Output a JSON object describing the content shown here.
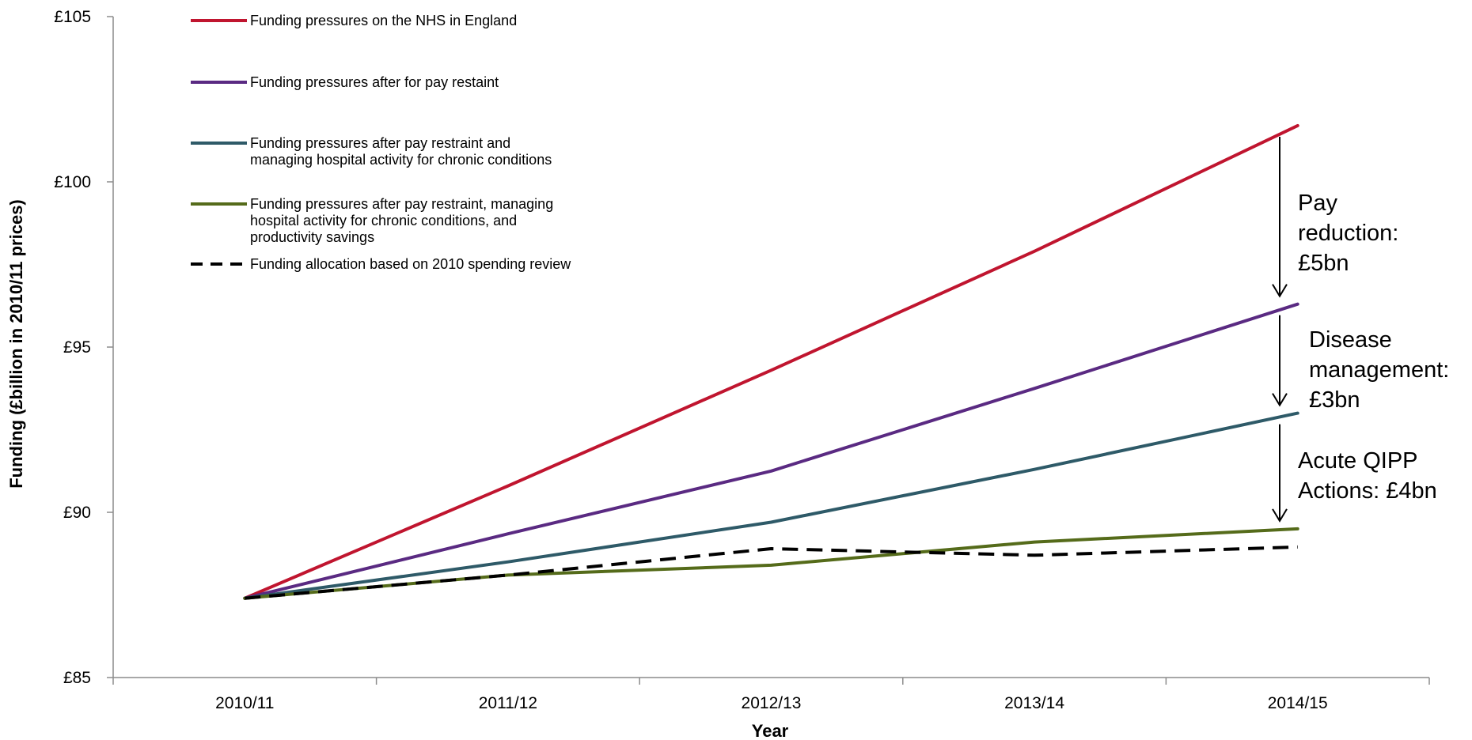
{
  "chart_data": {
    "type": "line",
    "title": "",
    "xlabel": "Year",
    "ylabel": "Funding (£billion in 2010/11 prices)",
    "categories": [
      "2010/11",
      "2011/12",
      "2012/13",
      "2013/14",
      "2014/15"
    ],
    "ylim": [
      85,
      105
    ],
    "yticks": [
      85,
      90,
      95,
      100,
      105
    ],
    "ytick_labels": [
      "£85",
      "£90",
      "£95",
      "£100",
      "£105"
    ],
    "grid": false,
    "legend_position": "top-left",
    "series": [
      {
        "name": "Funding pressures on the NHS in England",
        "color": "#c0152f",
        "dashed": false,
        "values": [
          87.4,
          90.8,
          94.3,
          97.9,
          101.7
        ]
      },
      {
        "name": "Funding pressures after for pay restaint",
        "color": "#5a2a82",
        "dashed": false,
        "values": [
          87.4,
          89.35,
          91.25,
          93.75,
          96.3
        ]
      },
      {
        "name": "Funding pressures after pay restraint and managing hospital activity for chronic conditions",
        "color": "#2e5a68",
        "dashed": false,
        "values": [
          87.4,
          88.5,
          89.7,
          91.3,
          93.0
        ]
      },
      {
        "name": "Funding pressures after pay restraint, managing hospital activity for chronic conditions, and productivity savings",
        "color": "#556b1a",
        "dashed": false,
        "values": [
          87.4,
          88.1,
          88.4,
          89.1,
          89.5
        ]
      },
      {
        "name": "Funding allocation based on 2010 spending review",
        "color": "#000000",
        "dashed": true,
        "values": [
          87.4,
          88.1,
          88.9,
          88.7,
          88.95
        ]
      }
    ],
    "legend_lines": [
      [
        "Funding pressures on the NHS in England"
      ],
      [
        "Funding pressures after for pay restaint"
      ],
      [
        "Funding pressures after pay restraint and",
        "managing hospital activity for chronic conditions"
      ],
      [
        "Funding pressures after pay restraint, managing",
        "hospital activity for chronic conditions, and",
        "productivity savings"
      ],
      [
        "Funding allocation based on 2010 spending review"
      ]
    ],
    "annotations": [
      {
        "lines": [
          "Pay",
          "reduction:",
          "£5bn"
        ],
        "from_series": 0,
        "to_series": 1
      },
      {
        "lines": [
          "Disease",
          "management:",
          "£3bn"
        ],
        "from_series": 1,
        "to_series": 2
      },
      {
        "lines": [
          "Acute QIPP",
          "Actions: £4bn"
        ],
        "from_series": 2,
        "to_series": 3
      }
    ]
  }
}
